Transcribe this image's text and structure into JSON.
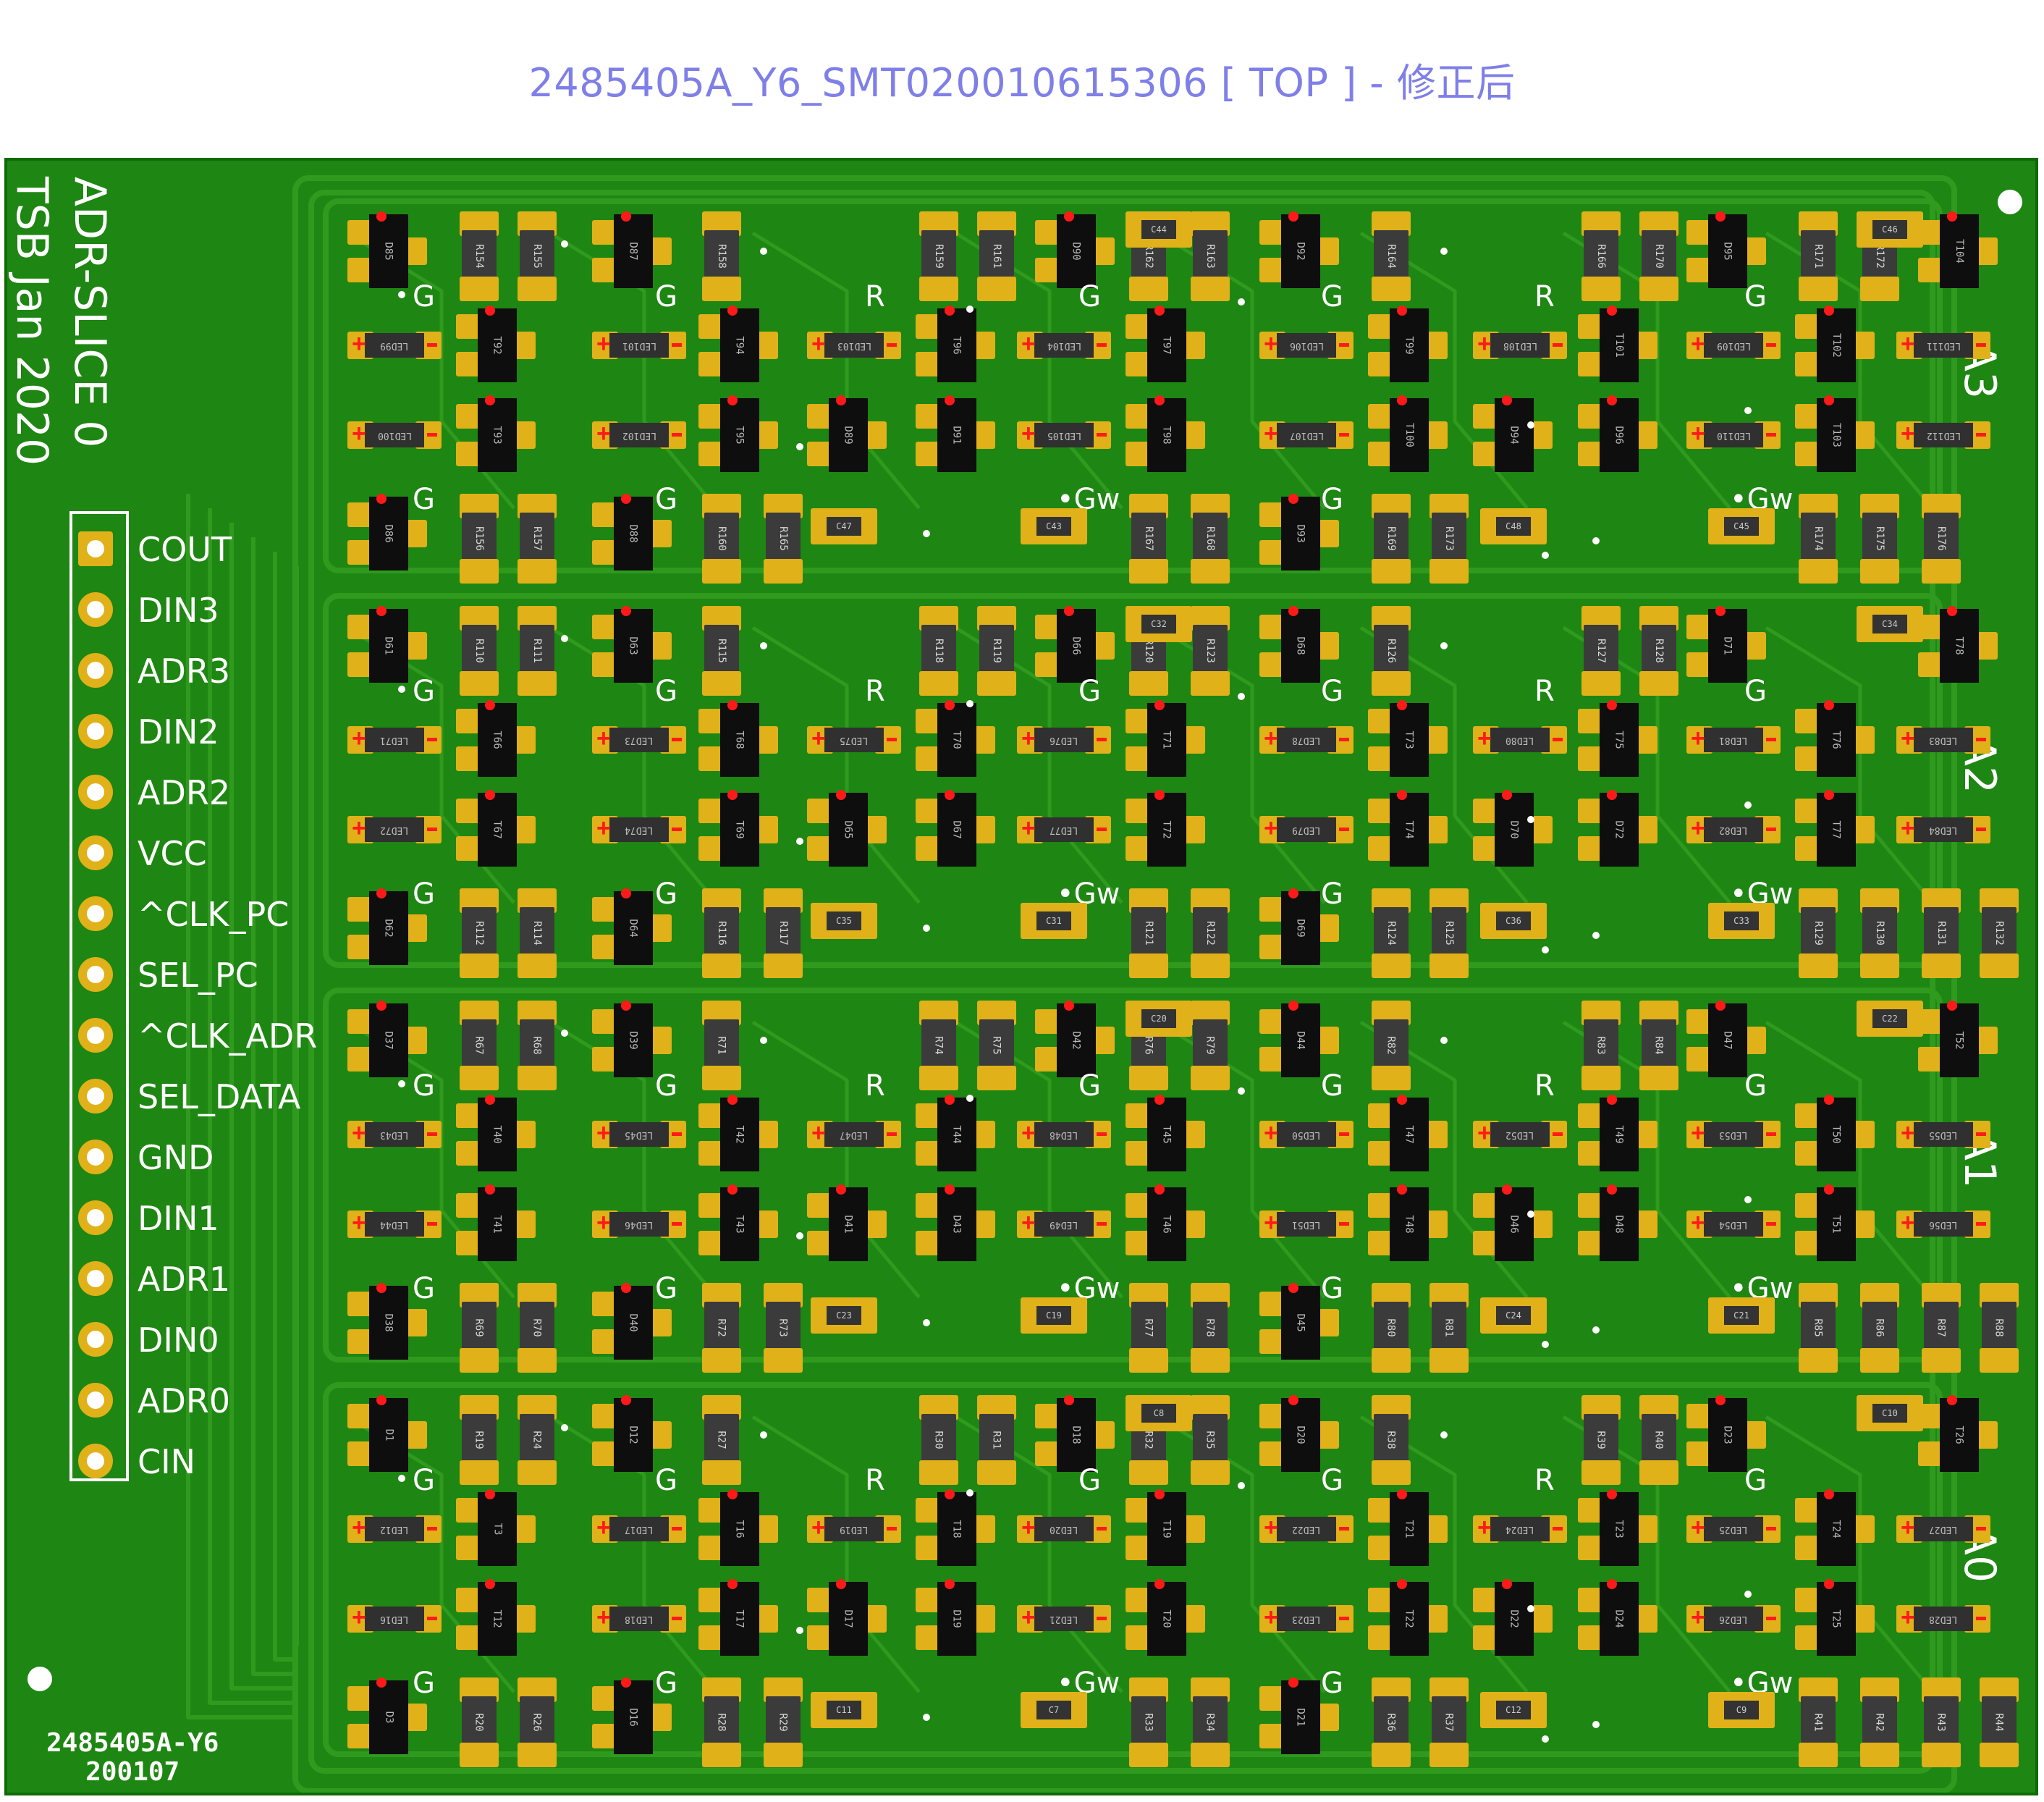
{
  "title": "2485405A_Y6_SMT020010615306 [ TOP ] - 修正后",
  "board": {
    "silk_title_line1": "ADR-SLICE 0",
    "silk_title_line2": "TSB Jan 2020",
    "part_mark_line1": "2485405A-Y6",
    "part_mark_line2": "200107",
    "colors": {
      "solder_mask": "#1e8612",
      "copper_trace": "#2f9a1e",
      "pad": "#e0b118",
      "silkscreen": "#ffffff",
      "polarity_mark": "#ff1a1a"
    }
  },
  "connector": {
    "pins": [
      "COUT",
      "DIN3",
      "ADR3",
      "DIN2",
      "ADR2",
      "VCC",
      "^CLK_PC",
      "SEL_PC",
      "^CLK_ADR",
      "SEL_DATA",
      "GND",
      "DIN1",
      "ADR1",
      "DIN0",
      "ADR0",
      "CIN"
    ]
  },
  "rows": [
    {
      "name": "A3",
      "color_labels": [
        "G",
        "G",
        "R",
        "G",
        "G",
        "R",
        "G"
      ],
      "lower_labels": [
        "G",
        "G",
        "Gw",
        "G",
        "Gw"
      ],
      "diodes_top": [
        "D85",
        "D87",
        "D90",
        "D92",
        "D95"
      ],
      "diodes_bottom": [
        "D86",
        "D88",
        "D93"
      ],
      "diodes_mid": [
        "D89",
        "D91",
        "D94",
        "D96"
      ],
      "transistors_a": [
        "T92",
        "T94",
        "T96",
        "T97",
        "T99",
        "T101",
        "T102"
      ],
      "transistors_b": [
        "T93",
        "T95",
        "T98",
        "T100",
        "T103"
      ],
      "transistor_end": "T104",
      "leds_a": [
        "LED99",
        "LED101",
        "LED103",
        "LED104",
        "LED106",
        "LED108",
        "LED109",
        "LED111"
      ],
      "leds_b": [
        "LED100",
        "LED102",
        "LED105",
        "LED107",
        "LED110",
        "LED112"
      ],
      "resistors_top": [
        "R154",
        "R155",
        "R158",
        "R159",
        "R161",
        "R162",
        "R163",
        "R164",
        "R166",
        "R170",
        "R171",
        "R172"
      ],
      "resistors_bottom": [
        "R156",
        "R157",
        "R160",
        "R165",
        "R167",
        "R168",
        "R169",
        "R173",
        "R174",
        "R175",
        "R176"
      ],
      "caps": [
        "C44",
        "C46",
        "C47",
        "C43",
        "C48",
        "C45"
      ]
    },
    {
      "name": "A2",
      "color_labels": [
        "G",
        "G",
        "R",
        "G",
        "G",
        "R",
        "G"
      ],
      "lower_labels": [
        "G",
        "G",
        "Gw",
        "G",
        "Gw"
      ],
      "diodes_top": [
        "D61",
        "D63",
        "D66",
        "D68",
        "D71"
      ],
      "diodes_bottom": [
        "D62",
        "D64",
        "D69"
      ],
      "diodes_mid": [
        "D65",
        "D67",
        "D70",
        "D72"
      ],
      "transistors_a": [
        "T66",
        "T68",
        "T70",
        "T71",
        "T73",
        "T75",
        "T76"
      ],
      "transistors_b": [
        "T67",
        "T69",
        "T72",
        "T74",
        "T77"
      ],
      "transistor_end": "T78",
      "leds_a": [
        "LED71",
        "LED73",
        "LED75",
        "LED76",
        "LED78",
        "LED80",
        "LED81",
        "LED83"
      ],
      "leds_b": [
        "LED72",
        "LED74",
        "LED77",
        "LED79",
        "LED82",
        "LED84"
      ],
      "resistors_top": [
        "R110",
        "R111",
        "R115",
        "R118",
        "R119",
        "R120",
        "R123",
        "R126",
        "R127",
        "R128"
      ],
      "resistors_bottom": [
        "R112",
        "R114",
        "R116",
        "R117",
        "R121",
        "R122",
        "R124",
        "R125",
        "R129",
        "R130",
        "R131",
        "R132"
      ],
      "caps": [
        "C32",
        "C34",
        "C35",
        "C31",
        "C36",
        "C33"
      ]
    },
    {
      "name": "A1",
      "color_labels": [
        "G",
        "G",
        "R",
        "G",
        "G",
        "R",
        "G"
      ],
      "lower_labels": [
        "G",
        "G",
        "Gw",
        "G",
        "Gw"
      ],
      "diodes_top": [
        "D37",
        "D39",
        "D42",
        "D44",
        "D47"
      ],
      "diodes_bottom": [
        "D38",
        "D40",
        "D45"
      ],
      "diodes_mid": [
        "D41",
        "D43",
        "D46",
        "D48"
      ],
      "transistors_a": [
        "T40",
        "T42",
        "T44",
        "T45",
        "T47",
        "T49",
        "T50"
      ],
      "transistors_b": [
        "T41",
        "T43",
        "T46",
        "T48",
        "T51"
      ],
      "transistor_end": "T52",
      "leds_a": [
        "LED43",
        "LED45",
        "LED47",
        "LED48",
        "LED50",
        "LED52",
        "LED53",
        "LED55"
      ],
      "leds_b": [
        "LED44",
        "LED46",
        "LED49",
        "LED51",
        "LED54",
        "LED56"
      ],
      "resistors_top": [
        "R67",
        "R68",
        "R71",
        "R74",
        "R75",
        "R76",
        "R79",
        "R82",
        "R83",
        "R84"
      ],
      "resistors_bottom": [
        "R69",
        "R70",
        "R72",
        "R73",
        "R77",
        "R78",
        "R80",
        "R81",
        "R85",
        "R86",
        "R87",
        "R88"
      ],
      "caps": [
        "C20",
        "C22",
        "C23",
        "C19",
        "C24",
        "C21"
      ]
    },
    {
      "name": "A0",
      "color_labels": [
        "G",
        "G",
        "R",
        "G",
        "G",
        "R",
        "G"
      ],
      "lower_labels": [
        "G",
        "G",
        "Gw",
        "G",
        "Gw"
      ],
      "diodes_top": [
        "D1",
        "D12",
        "D18",
        "D20",
        "D23"
      ],
      "diodes_bottom": [
        "D3",
        "D16",
        "D21"
      ],
      "diodes_mid": [
        "D17",
        "D19",
        "D22",
        "D24"
      ],
      "transistors_a": [
        "T3",
        "T16",
        "T18",
        "T19",
        "T21",
        "T23",
        "T24"
      ],
      "transistors_b": [
        "T12",
        "T17",
        "T20",
        "T22",
        "T25"
      ],
      "transistor_end": "T26",
      "leds_a": [
        "LED12",
        "LED17",
        "LED19",
        "LED20",
        "LED22",
        "LED24",
        "LED25",
        "LED27"
      ],
      "leds_b": [
        "LED16",
        "LED18",
        "LED21",
        "LED23",
        "LED26",
        "LED28"
      ],
      "resistors_top": [
        "R19",
        "R24",
        "R27",
        "R30",
        "R31",
        "R32",
        "R35",
        "R38",
        "R39",
        "R40"
      ],
      "resistors_bottom": [
        "R20",
        "R26",
        "R28",
        "R29",
        "R33",
        "R34",
        "R36",
        "R37",
        "R41",
        "R42",
        "R43",
        "R44"
      ],
      "caps": [
        "C8",
        "C10",
        "C11",
        "C7",
        "C12",
        "C9"
      ]
    }
  ]
}
